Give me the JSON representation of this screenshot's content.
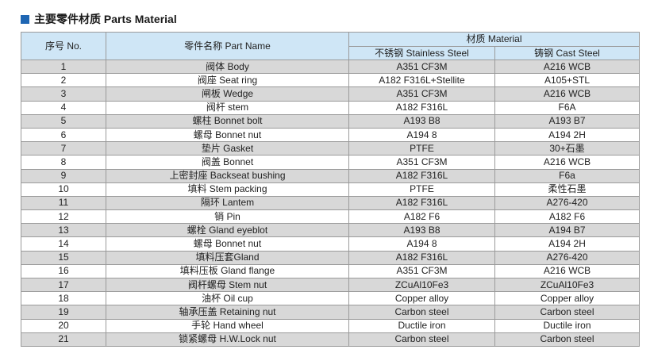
{
  "title": "主要零件材质 Parts Material",
  "headers": {
    "no": "序号 No.",
    "part_name": "零件名称 Part Name",
    "material": "材质 Material",
    "stainless": "不锈钢 Stainless Steel",
    "cast": "铸钢 Cast Steel"
  },
  "rows": [
    {
      "no": "1",
      "name": "阀体 Body",
      "stainless": "A351 CF3M",
      "cast": "A216 WCB"
    },
    {
      "no": "2",
      "name": "阀座 Seat ring",
      "stainless": "A182 F316L+Stellite",
      "cast": "A105+STL"
    },
    {
      "no": "3",
      "name": "闸板 Wedge",
      "stainless": "A351 CF3M",
      "cast": "A216 WCB"
    },
    {
      "no": "4",
      "name": "阀杆 stem",
      "stainless": "A182 F316L",
      "cast": "F6A"
    },
    {
      "no": "5",
      "name": "螺柱 Bonnet bolt",
      "stainless": "A193 B8",
      "cast": "A193 B7"
    },
    {
      "no": "6",
      "name": "螺母 Bonnet nut",
      "stainless": "A194 8",
      "cast": "A194 2H"
    },
    {
      "no": "7",
      "name": "垫片 Gasket",
      "stainless": "PTFE",
      "cast": "30+石墨"
    },
    {
      "no": "8",
      "name": "阀盖 Bonnet",
      "stainless": "A351 CF3M",
      "cast": "A216 WCB"
    },
    {
      "no": "9",
      "name": "上密封座 Backseat bushing",
      "stainless": "A182 F316L",
      "cast": "F6a"
    },
    {
      "no": "10",
      "name": "填料 Stem packing",
      "stainless": "PTFE",
      "cast": "柔性石墨"
    },
    {
      "no": "11",
      "name": "隔环 Lantem",
      "stainless": "A182 F316L",
      "cast": "A276-420"
    },
    {
      "no": "12",
      "name": "销 Pin",
      "stainless": "A182 F6",
      "cast": "A182 F6"
    },
    {
      "no": "13",
      "name": "螺栓 Gland eyeblot",
      "stainless": "A193 B8",
      "cast": "A194 B7"
    },
    {
      "no": "14",
      "name": "螺母 Bonnet nut",
      "stainless": "A194 8",
      "cast": "A194 2H"
    },
    {
      "no": "15",
      "name": "填料压套Gland",
      "stainless": "A182 F316L",
      "cast": "A276-420"
    },
    {
      "no": "16",
      "name": "填料压板 Gland flange",
      "stainless": "A351 CF3M",
      "cast": "A216 WCB"
    },
    {
      "no": "17",
      "name": "阀杆螺母 Stem nut",
      "stainless": "ZCuAl10Fe3",
      "cast": "ZCuAl10Fe3"
    },
    {
      "no": "18",
      "name": "油杯 Oil cup",
      "stainless": "Copper alloy",
      "cast": "Copper alloy"
    },
    {
      "no": "19",
      "name": "轴承压盖 Retaining nut",
      "stainless": "Carbon steel",
      "cast": "Carbon steel"
    },
    {
      "no": "20",
      "name": "手轮 Hand wheel",
      "stainless": "Ductile iron",
      "cast": "Ductile iron"
    },
    {
      "no": "21",
      "name": "锁紧螺母 H.W.Lock nut",
      "stainless": "Carbon steel",
      "cast": "Carbon steel"
    }
  ]
}
